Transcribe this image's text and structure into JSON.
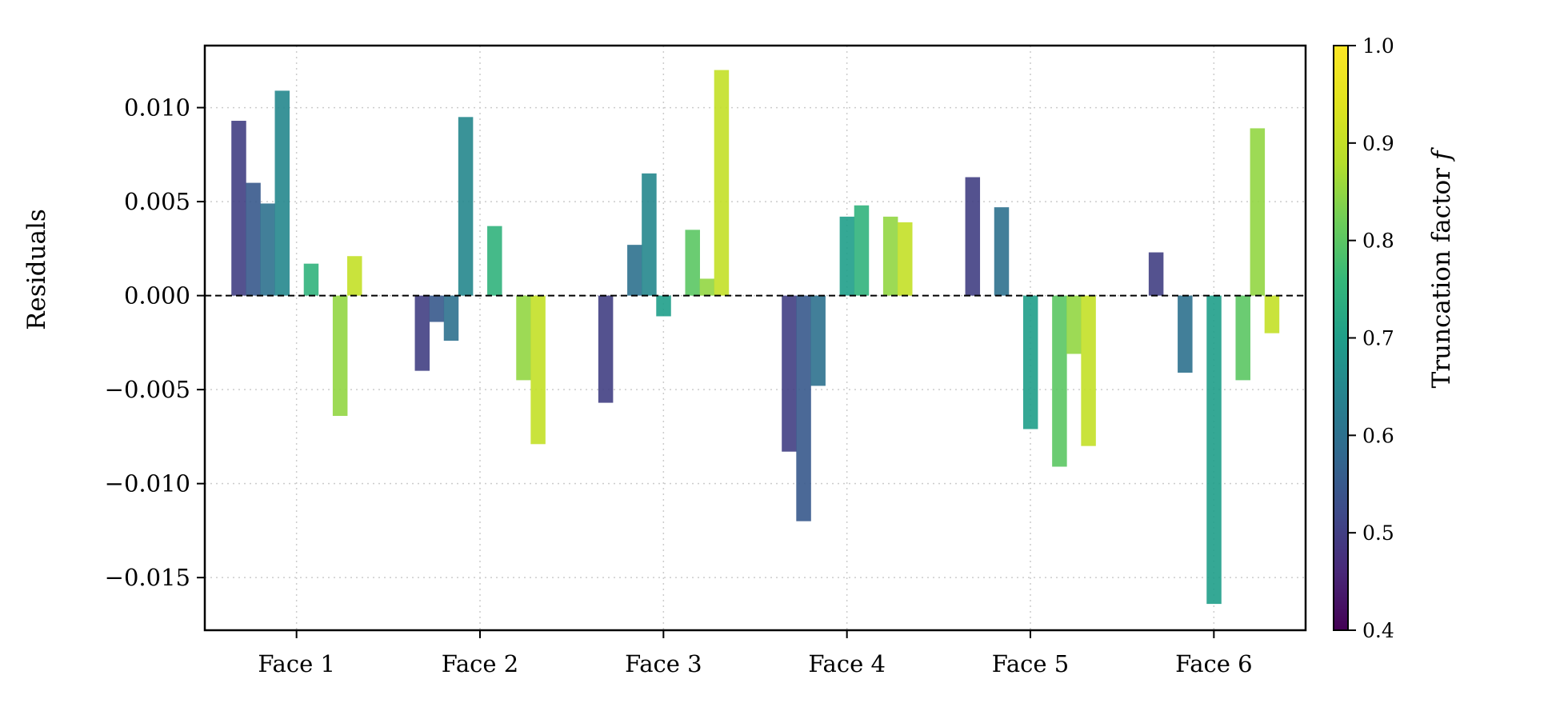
{
  "chart_data": {
    "type": "bar",
    "categories": [
      "Face 1",
      "Face 2",
      "Face 3",
      "Face 4",
      "Face 5",
      "Face 6"
    ],
    "xlabel": "",
    "ylabel": "Residuals",
    "ylim": [
      -0.0178,
      0.0133
    ],
    "yticks": [
      0.01,
      0.005,
      0.0,
      -0.005,
      -0.01,
      -0.015
    ],
    "ytick_labels": [
      "0.010",
      "0.005",
      "0.000",
      "−0.005",
      "−0.010",
      "−0.015"
    ],
    "grid": true,
    "zero_line": "dashed",
    "color_map": "viridis",
    "series": [
      {
        "truncation_factor": 0.5,
        "values": [
          0.0093,
          -0.004,
          -0.0057,
          -0.0083,
          0.0063,
          0.0023
        ]
      },
      {
        "truncation_factor": 0.55,
        "values": [
          0.006,
          -0.0014,
          null,
          -0.012,
          null,
          null
        ]
      },
      {
        "truncation_factor": 0.6,
        "values": [
          0.0049,
          -0.0024,
          0.0027,
          -0.0048,
          0.0047,
          -0.0041
        ]
      },
      {
        "truncation_factor": 0.65,
        "values": [
          0.0109,
          0.0095,
          0.0065,
          null,
          null,
          null
        ]
      },
      {
        "truncation_factor": 0.7,
        "values": [
          null,
          null,
          -0.0011,
          0.0042,
          -0.0071,
          -0.0164
        ]
      },
      {
        "truncation_factor": 0.75,
        "values": [
          0.0017,
          0.0037,
          null,
          0.0048,
          null,
          null
        ]
      },
      {
        "truncation_factor": 0.8,
        "values": [
          null,
          null,
          0.0035,
          null,
          -0.0091,
          -0.0045
        ]
      },
      {
        "truncation_factor": 0.85,
        "values": [
          -0.0064,
          -0.0045,
          0.0009,
          0.0042,
          -0.0031,
          0.0089
        ]
      },
      {
        "truncation_factor": 0.9,
        "values": [
          0.0021,
          -0.0079,
          0.012,
          0.0039,
          -0.008,
          -0.002
        ]
      }
    ],
    "colorbar": {
      "label": "Truncation factor f",
      "label_text": "Truncation factor ",
      "label_symbol": "f",
      "range": [
        0.4,
        1.0
      ],
      "ticks": [
        0.4,
        0.5,
        0.6,
        0.7,
        0.8,
        0.9,
        1.0
      ],
      "tick_labels": [
        "0.4",
        "0.5",
        "0.6",
        "0.7",
        "0.8",
        "0.9",
        "1.0"
      ]
    }
  }
}
